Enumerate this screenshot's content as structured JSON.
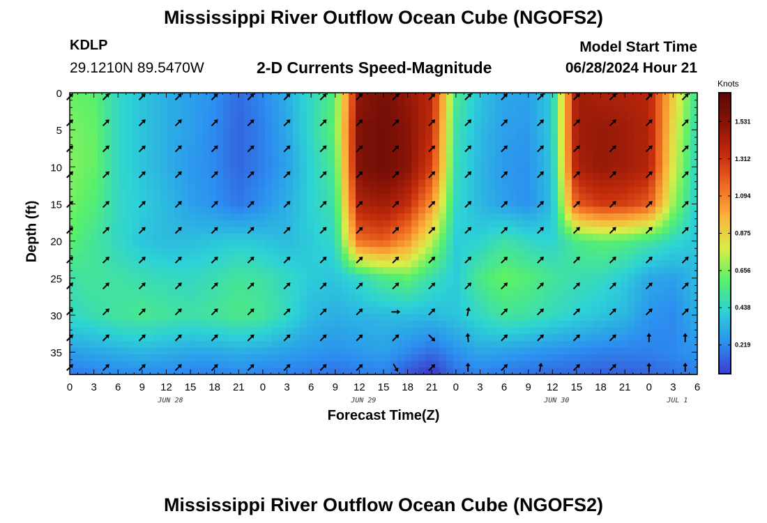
{
  "title": "Mississippi River Outflow Ocean Cube (NGOFS2)",
  "title_repeat": "Mississippi River Outflow Ocean Cube (NGOFS2)",
  "station": {
    "id": "KDLP",
    "coords": "29.1210N  89.5470W"
  },
  "subtitle": "2-D Currents Speed-Magnitude",
  "model_start": {
    "label": "Model Start Time",
    "value": "06/28/2024 Hour 21"
  },
  "chart_data": {
    "type": "heatmap",
    "title": "2-D Currents Speed-Magnitude",
    "xlabel": "Forecast Time(Z)",
    "ylabel": "Depth (ft)",
    "x_range_hours": [
      0,
      78
    ],
    "y_range_ft": [
      0,
      38
    ],
    "x_tick_labels": [
      "0",
      "3",
      "6",
      "9",
      "12",
      "15",
      "18",
      "21",
      "0",
      "3",
      "6",
      "9",
      "12",
      "15",
      "18",
      "21",
      "0",
      "3",
      "6",
      "9",
      "12",
      "15",
      "18",
      "21",
      "0",
      "3",
      "6"
    ],
    "y_ticks": [
      0,
      5,
      10,
      15,
      20,
      25,
      30,
      35
    ],
    "date_labels": [
      {
        "text": "JUN 28",
        "hour": 12
      },
      {
        "text": "JUN 29",
        "hour": 36
      },
      {
        "text": "JUN 30",
        "hour": 60
      },
      {
        "text": "JUL 1",
        "hour": 75
      }
    ],
    "colorbar": {
      "unit": "Knots",
      "range": [
        0.05,
        1.7
      ],
      "ticks": [
        "0.219",
        "0.438",
        "0.656",
        "0.875",
        "1.094",
        "1.312",
        "1.531"
      ],
      "tick_values": [
        0.219,
        0.438,
        0.656,
        0.875,
        1.094,
        1.312,
        1.531
      ],
      "colors": [
        "#3b3fce",
        "#2c8ff0",
        "#2dd2d6",
        "#58f06a",
        "#d8ee48",
        "#fbb53c",
        "#f06c22",
        "#c52d0c",
        "#8a1407",
        "#5a0906"
      ]
    },
    "speed_knots": {
      "depths_ft": [
        0,
        5,
        10,
        15,
        20,
        25,
        30,
        35,
        38
      ],
      "hours": [
        0,
        3,
        6,
        9,
        12,
        15,
        18,
        21,
        24,
        27,
        30,
        33,
        36,
        39,
        42,
        45,
        48,
        51,
        54,
        57,
        60,
        63,
        66,
        69,
        72,
        75,
        78
      ],
      "rows": [
        [
          0.62,
          0.6,
          0.45,
          0.38,
          0.32,
          0.28,
          0.24,
          0.15,
          0.22,
          0.32,
          0.45,
          0.58,
          1.5,
          1.58,
          1.48,
          1.38,
          0.55,
          0.38,
          0.3,
          0.28,
          0.4,
          1.45,
          1.42,
          1.4,
          1.38,
          0.9,
          0.5
        ],
        [
          0.65,
          0.62,
          0.45,
          0.38,
          0.32,
          0.28,
          0.22,
          0.14,
          0.2,
          0.3,
          0.45,
          0.6,
          1.55,
          1.62,
          1.52,
          1.35,
          0.5,
          0.35,
          0.28,
          0.26,
          0.4,
          1.45,
          1.48,
          1.45,
          1.4,
          0.85,
          0.45
        ],
        [
          0.66,
          0.62,
          0.45,
          0.38,
          0.32,
          0.26,
          0.22,
          0.14,
          0.2,
          0.28,
          0.42,
          0.55,
          1.55,
          1.62,
          1.52,
          1.28,
          0.48,
          0.34,
          0.26,
          0.24,
          0.38,
          1.42,
          1.48,
          1.45,
          1.4,
          0.8,
          0.42
        ],
        [
          0.64,
          0.58,
          0.45,
          0.4,
          0.35,
          0.28,
          0.24,
          0.18,
          0.24,
          0.32,
          0.42,
          0.5,
          1.4,
          1.45,
          1.35,
          1.05,
          0.45,
          0.34,
          0.28,
          0.24,
          0.36,
          1.2,
          1.3,
          1.28,
          1.2,
          0.7,
          0.4
        ],
        [
          0.6,
          0.52,
          0.45,
          0.38,
          0.35,
          0.36,
          0.38,
          0.4,
          0.38,
          0.35,
          0.4,
          0.45,
          1.15,
          1.2,
          1.05,
          0.75,
          0.4,
          0.42,
          0.5,
          0.45,
          0.42,
          0.55,
          0.6,
          0.58,
          0.52,
          0.45,
          0.38
        ],
        [
          0.5,
          0.52,
          0.5,
          0.48,
          0.46,
          0.45,
          0.48,
          0.52,
          0.5,
          0.45,
          0.4,
          0.38,
          0.45,
          0.55,
          0.6,
          0.48,
          0.4,
          0.55,
          0.62,
          0.58,
          0.52,
          0.48,
          0.46,
          0.4,
          0.3,
          0.28,
          0.35
        ],
        [
          0.45,
          0.48,
          0.52,
          0.54,
          0.52,
          0.5,
          0.52,
          0.55,
          0.53,
          0.45,
          0.35,
          0.32,
          0.34,
          0.35,
          0.36,
          0.35,
          0.38,
          0.45,
          0.52,
          0.5,
          0.46,
          0.42,
          0.38,
          0.34,
          0.25,
          0.22,
          0.32
        ],
        [
          0.28,
          0.3,
          0.32,
          0.34,
          0.32,
          0.3,
          0.3,
          0.32,
          0.3,
          0.28,
          0.26,
          0.24,
          0.26,
          0.28,
          0.22,
          0.16,
          0.24,
          0.3,
          0.28,
          0.26,
          0.24,
          0.22,
          0.2,
          0.2,
          0.2,
          0.22,
          0.25
        ],
        [
          0.18,
          0.2,
          0.22,
          0.22,
          0.22,
          0.2,
          0.2,
          0.22,
          0.2,
          0.2,
          0.18,
          0.16,
          0.18,
          0.2,
          0.1,
          0.02,
          0.16,
          0.2,
          0.18,
          0.16,
          0.14,
          0.14,
          0.12,
          0.12,
          0.14,
          0.16,
          0.2
        ]
      ]
    },
    "current_arrows": {
      "hours_start": 0,
      "hours_step": 4.5,
      "depths_ft": [
        0,
        3.5,
        7,
        10.5,
        14.5,
        18,
        22,
        25.5,
        29,
        32.5,
        36.5
      ],
      "default_direction_deg": 315,
      "exceptions": [
        {
          "hour": 45,
          "depth": 32.5,
          "direction_deg": 225
        },
        {
          "hour": 40.5,
          "depth": 36.5,
          "direction_deg": 210
        },
        {
          "hour": 40.5,
          "depth": 29,
          "direction_deg": 270
        },
        {
          "hour": 49.5,
          "depth": 29,
          "direction_deg": 350
        },
        {
          "hour": 49.5,
          "depth": 32.5,
          "direction_deg": 5
        },
        {
          "hour": 49.5,
          "depth": 36.5,
          "direction_deg": 0
        },
        {
          "hour": 72,
          "depth": 32.5,
          "direction_deg": 0
        },
        {
          "hour": 72,
          "depth": 36.5,
          "direction_deg": 0
        },
        {
          "hour": 76.5,
          "depth": 32.5,
          "direction_deg": 0
        },
        {
          "hour": 76.5,
          "depth": 36.5,
          "direction_deg": 0
        },
        {
          "hour": 58.5,
          "depth": 36.5,
          "direction_deg": 350
        }
      ]
    }
  }
}
